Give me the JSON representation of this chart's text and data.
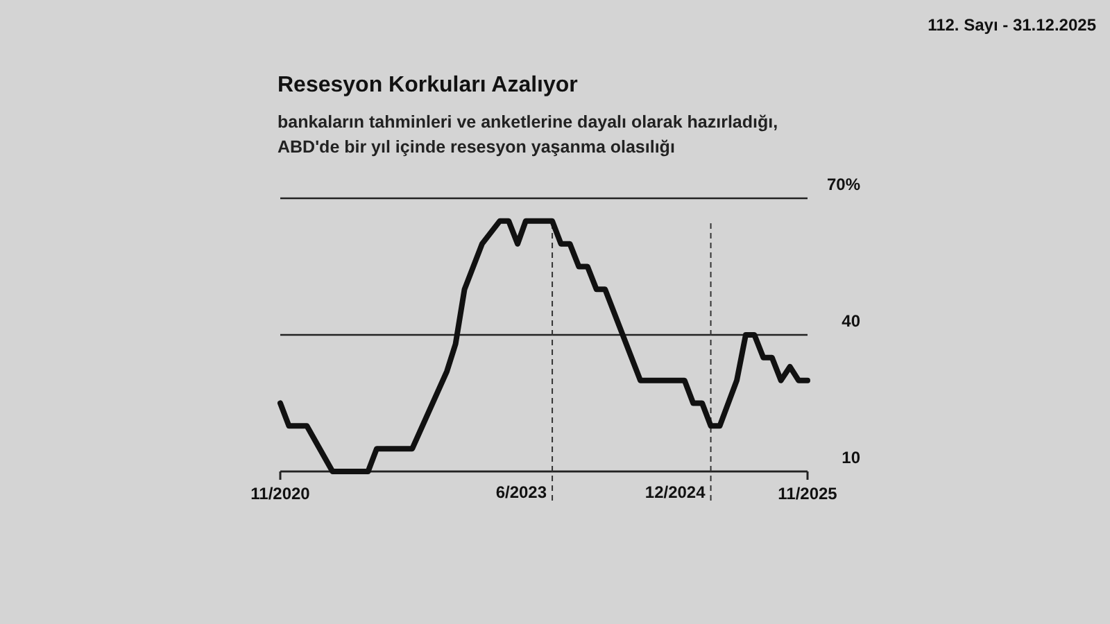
{
  "chart_data": {
    "type": "line",
    "title": "Resesyon Korkuları Azalıyor",
    "subtitle": "bankaların tahminleri ve anketlerine dayalı olarak hazırladığı, ABD'de bir yıl içinde resesyon yaşanma olasılığı",
    "annotations": [
      "112. Sayı - 31.12.2025"
    ],
    "x": [
      "2020-11",
      "2020-12",
      "2021-02",
      "2021-05",
      "2021-09",
      "2021-10",
      "2022-02",
      "2022-06",
      "2022-07",
      "2022-08",
      "2022-10",
      "2022-12",
      "2023-01",
      "2023-02",
      "2023-03",
      "2023-06",
      "2023-07",
      "2023-08",
      "2023-09",
      "2023-10",
      "2023-11",
      "2023-12",
      "2024-04",
      "2024-09",
      "2024-10",
      "2024-11",
      "2024-12",
      "2025-01",
      "2025-03",
      "2025-04",
      "2025-05",
      "2025-06",
      "2025-07",
      "2025-08",
      "2025-09",
      "2025-10",
      "2025-11"
    ],
    "series": [
      {
        "color": "#111111",
        "values": [
          25,
          20,
          20,
          10,
          10,
          15,
          15,
          32,
          38,
          50,
          60,
          65,
          65,
          60,
          65,
          65,
          60,
          60,
          55,
          55,
          50,
          50,
          30,
          30,
          25,
          25,
          20,
          20,
          30,
          40,
          40,
          35,
          35,
          30,
          33,
          30,
          30
        ]
      }
    ],
    "xlim": [
      "2020-11",
      "2025-11"
    ],
    "xticks": [
      {
        "value": "2020-11",
        "label": "11/2020"
      },
      {
        "value": "2025-11",
        "label": "11/2025"
      }
    ],
    "ylim": [
      10,
      70
    ],
    "yticks": [
      10,
      40,
      {
        "value": 70,
        "label": "70%"
      }
    ],
    "grid": "y",
    "marker": "none",
    "line_style": "solid",
    "ref_lines": [
      {
        "axis": "x",
        "value": "2023-06",
        "label": "6/2023",
        "line_style": "dashed",
        "color": "#333333"
      },
      {
        "axis": "x",
        "value": "2024-12",
        "label": "12/2024",
        "line_style": "dashed",
        "color": "#333333"
      }
    ]
  }
}
